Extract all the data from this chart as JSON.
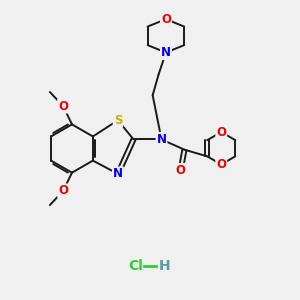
{
  "background_color": "#f0f0f0",
  "bond_color": "#1a1a1a",
  "N_color": "#0000ee",
  "O_color": "#ee0000",
  "S_color": "#bbbb00",
  "HCl_color": "#33cc33",
  "H_color": "#5599aa",
  "line_width": 1.4,
  "font_size_atom": 8.5,
  "font_size_hcl": 10,
  "xlim": [
    0,
    10
  ],
  "ylim": [
    0,
    10
  ]
}
